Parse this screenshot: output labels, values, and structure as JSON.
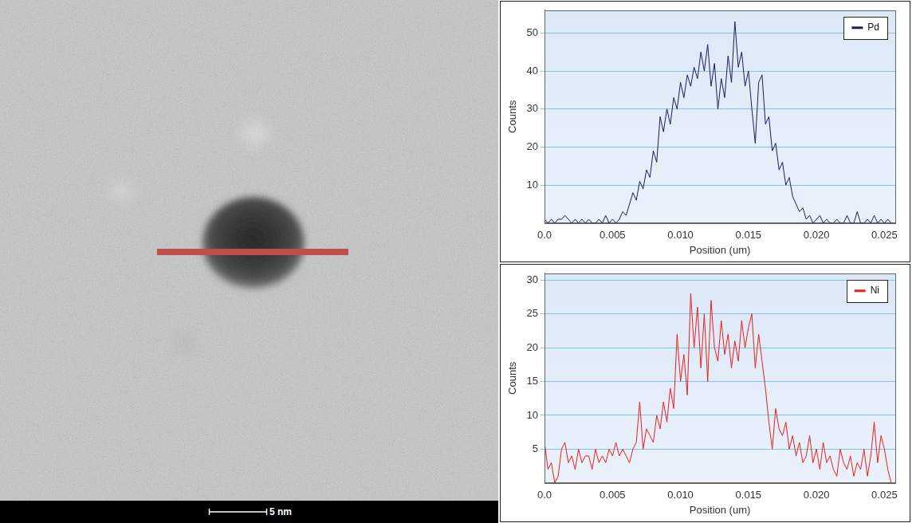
{
  "micrograph": {
    "scale_bar_label": "5 nm"
  },
  "chart_data": [
    {
      "type": "line",
      "x_label": "Position (um)",
      "y_label": "Counts",
      "x": [
        0,
        0.00025,
        0.0005,
        0.00075,
        0.001,
        0.00125,
        0.0015,
        0.00175,
        0.002,
        0.00225,
        0.0025,
        0.00275,
        0.003,
        0.00325,
        0.0035,
        0.00375,
        0.004,
        0.00425,
        0.0045,
        0.00475,
        0.005,
        0.00525,
        0.0055,
        0.00575,
        0.006,
        0.00625,
        0.0065,
        0.00675,
        0.007,
        0.00725,
        0.0075,
        0.00775,
        0.008,
        0.00825,
        0.0085,
        0.00875,
        0.009,
        0.00925,
        0.0095,
        0.00975,
        0.01,
        0.01025,
        0.0105,
        0.01075,
        0.011,
        0.01125,
        0.0115,
        0.01175,
        0.012,
        0.01225,
        0.0125,
        0.01275,
        0.013,
        0.01325,
        0.0135,
        0.01375,
        0.014,
        0.01425,
        0.0145,
        0.01475,
        0.015,
        0.01525,
        0.0155,
        0.01575,
        0.016,
        0.01625,
        0.0165,
        0.01675,
        0.017,
        0.01725,
        0.0175,
        0.01775,
        0.018,
        0.01825,
        0.0185,
        0.01875,
        0.019,
        0.01925,
        0.0195,
        0.01975,
        0.02,
        0.02025,
        0.0205,
        0.02075,
        0.021,
        0.02125,
        0.0215,
        0.02175,
        0.022,
        0.02225,
        0.0225,
        0.02275,
        0.023,
        0.02325,
        0.0235,
        0.02375,
        0.024,
        0.02425,
        0.0245,
        0.02475,
        0.025,
        0.02525,
        0.0255
      ],
      "series": [
        {
          "name": "Pd",
          "color": "#1c1c5e",
          "values": [
            1,
            0,
            1,
            0,
            1,
            1,
            2,
            1,
            0,
            1,
            0,
            1,
            0,
            1,
            0,
            0,
            1,
            0,
            2,
            0,
            1,
            0,
            1,
            3,
            2,
            5,
            8,
            6,
            11,
            9,
            14,
            12,
            19,
            16,
            28,
            24,
            30,
            26,
            33,
            30,
            37,
            33,
            39,
            36,
            41,
            38,
            45,
            40,
            47,
            36,
            42,
            30,
            38,
            33,
            44,
            37,
            53,
            41,
            45,
            36,
            40,
            30,
            21,
            37,
            39,
            26,
            28,
            19,
            21,
            14,
            16,
            10,
            12,
            7,
            5,
            3,
            4,
            1,
            2,
            0,
            1,
            2,
            0,
            1,
            0,
            0,
            1,
            0,
            0,
            2,
            0,
            0,
            3,
            0,
            0,
            1,
            0,
            2,
            0,
            1,
            0,
            1,
            0
          ]
        }
      ],
      "xlim": [
        0,
        0.0258
      ],
      "xticks": [
        {
          "value": 0,
          "label": "0.0"
        },
        0.005,
        {
          "value": 0.01,
          "label": "0.010"
        },
        0.015,
        {
          "value": 0.02,
          "label": "0.020"
        },
        0.025
      ],
      "ylim": [
        0,
        56
      ],
      "yticks": [
        10,
        20,
        30,
        40,
        50
      ],
      "grid": true,
      "legend": "upper right"
    },
    {
      "type": "line",
      "x_label": "Position (um)",
      "y_label": "Counts",
      "x": [
        0,
        0.00025,
        0.0005,
        0.00075,
        0.001,
        0.00125,
        0.0015,
        0.00175,
        0.002,
        0.00225,
        0.0025,
        0.00275,
        0.003,
        0.00325,
        0.0035,
        0.00375,
        0.004,
        0.00425,
        0.0045,
        0.00475,
        0.005,
        0.00525,
        0.0055,
        0.00575,
        0.006,
        0.00625,
        0.0065,
        0.00675,
        0.007,
        0.00725,
        0.0075,
        0.00775,
        0.008,
        0.00825,
        0.0085,
        0.00875,
        0.009,
        0.00925,
        0.0095,
        0.00975,
        0.01,
        0.01025,
        0.0105,
        0.01075,
        0.011,
        0.01125,
        0.0115,
        0.01175,
        0.012,
        0.01225,
        0.0125,
        0.01275,
        0.013,
        0.01325,
        0.0135,
        0.01375,
        0.014,
        0.01425,
        0.0145,
        0.01475,
        0.015,
        0.01525,
        0.0155,
        0.01575,
        0.016,
        0.01625,
        0.0165,
        0.01675,
        0.017,
        0.01725,
        0.0175,
        0.01775,
        0.018,
        0.01825,
        0.0185,
        0.01875,
        0.019,
        0.01925,
        0.0195,
        0.01975,
        0.02,
        0.02025,
        0.0205,
        0.02075,
        0.021,
        0.02125,
        0.0215,
        0.02175,
        0.022,
        0.02225,
        0.0225,
        0.02275,
        0.023,
        0.02325,
        0.0235,
        0.02375,
        0.024,
        0.02425,
        0.0245,
        0.02475,
        0.025,
        0.02525,
        0.0255
      ],
      "series": [
        {
          "name": "Ni",
          "color": "#e8201c",
          "values": [
            6,
            2,
            3,
            0,
            1,
            5,
            6,
            3,
            4,
            2,
            5,
            3,
            4,
            4,
            2,
            5,
            3,
            4,
            3,
            5,
            4,
            6,
            4,
            5,
            4,
            3,
            5,
            6,
            12,
            5,
            8,
            7,
            6,
            10,
            8,
            12,
            9,
            14,
            11,
            22,
            15,
            19,
            13,
            28,
            20,
            26,
            17,
            25,
            15,
            27,
            20,
            18,
            24,
            19,
            22,
            17,
            21,
            18,
            24,
            20,
            23,
            25,
            17,
            22,
            18,
            14,
            9,
            5,
            11,
            8,
            7,
            9,
            5,
            7,
            4,
            6,
            3,
            4,
            7,
            3,
            5,
            2,
            6,
            3,
            4,
            2,
            1,
            5,
            3,
            2,
            4,
            1,
            3,
            2,
            5,
            1,
            4,
            9,
            3,
            7,
            5,
            2,
            0
          ]
        }
      ],
      "xlim": [
        0,
        0.0258
      ],
      "xticks": [
        {
          "value": 0,
          "label": "0.0"
        },
        0.005,
        {
          "value": 0.01,
          "label": "0.010"
        },
        0.015,
        {
          "value": 0.02,
          "label": "0.020"
        },
        0.025
      ],
      "ylim": [
        0,
        31
      ],
      "yticks": [
        5,
        10,
        15,
        20,
        25,
        30
      ],
      "grid": true,
      "legend": "upper right"
    }
  ]
}
